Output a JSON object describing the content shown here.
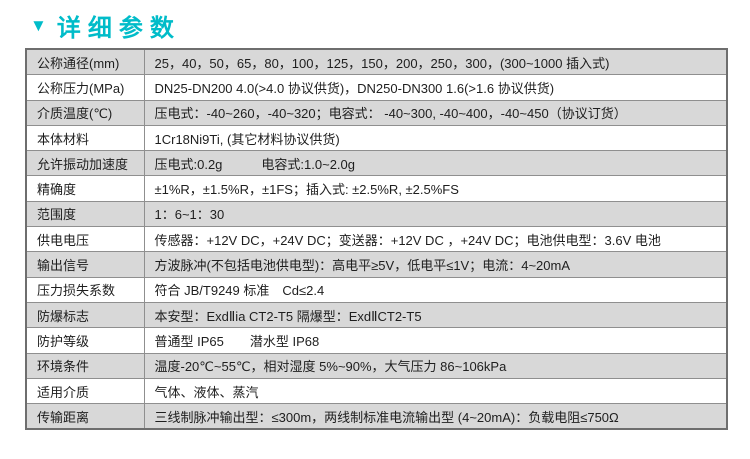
{
  "header": {
    "marker": "▼",
    "title": "详细参数",
    "accent_color": "#00bcc9"
  },
  "table": {
    "shaded_row_color": "#d8d8d8",
    "rows": [
      {
        "label": "公称通径(mm)",
        "value": "25，40，50，65，80，100，125，150，200，250，300，(300~1000 插入式)"
      },
      {
        "label": "公称压力(MPa)",
        "value": "DN25-DN200 4.0(>4.0 协议供货)，DN250-DN300 1.6(>1.6 协议供货)"
      },
      {
        "label": "介质温度(℃)",
        "value": "压电式：-40~260，-40~320；电容式： -40~300, -40~400，-40~450（协议订货）"
      },
      {
        "label": "本体材料",
        "value": "1Cr18Ni9Ti, (其它材料协议供货)"
      },
      {
        "label": "允许振动加速度",
        "value": "压电式:0.2g　　　电容式:1.0~2.0g"
      },
      {
        "label": "精确度",
        "value": "±1%R，±1.5%R，±1FS；插入式: ±2.5%R, ±2.5%FS"
      },
      {
        "label": "范围度",
        "value": "1：6~1：30"
      },
      {
        "label": "供电电压",
        "value": "传感器：+12V DC，+24V DC；变送器：+12V DC ，+24V DC；电池供电型：3.6V 电池"
      },
      {
        "label": "输出信号",
        "value": "方波脉冲(不包括电池供电型)：高电平≥5V，低电平≤1V；电流：4~20mA"
      },
      {
        "label": "压力损失系数",
        "value": "符合 JB/T9249 标准　Cd≤2.4"
      },
      {
        "label": "防爆标志",
        "value": "本安型：ExdⅡia CT2-T5 隔爆型：ExdⅡCT2-T5"
      },
      {
        "label": "防护等级",
        "value": "普通型 IP65　　潜水型 IP68"
      },
      {
        "label": "环境条件",
        "value": "温度-20℃~55℃，相对湿度 5%~90%，大气压力 86~106kPa"
      },
      {
        "label": "适用介质",
        "value": "气体、液体、蒸汽"
      },
      {
        "label": "传输距离",
        "value": "三线制脉冲输出型：≤300m，两线制标准电流输出型 (4~20mA)：负载电阻≤750Ω"
      }
    ]
  }
}
